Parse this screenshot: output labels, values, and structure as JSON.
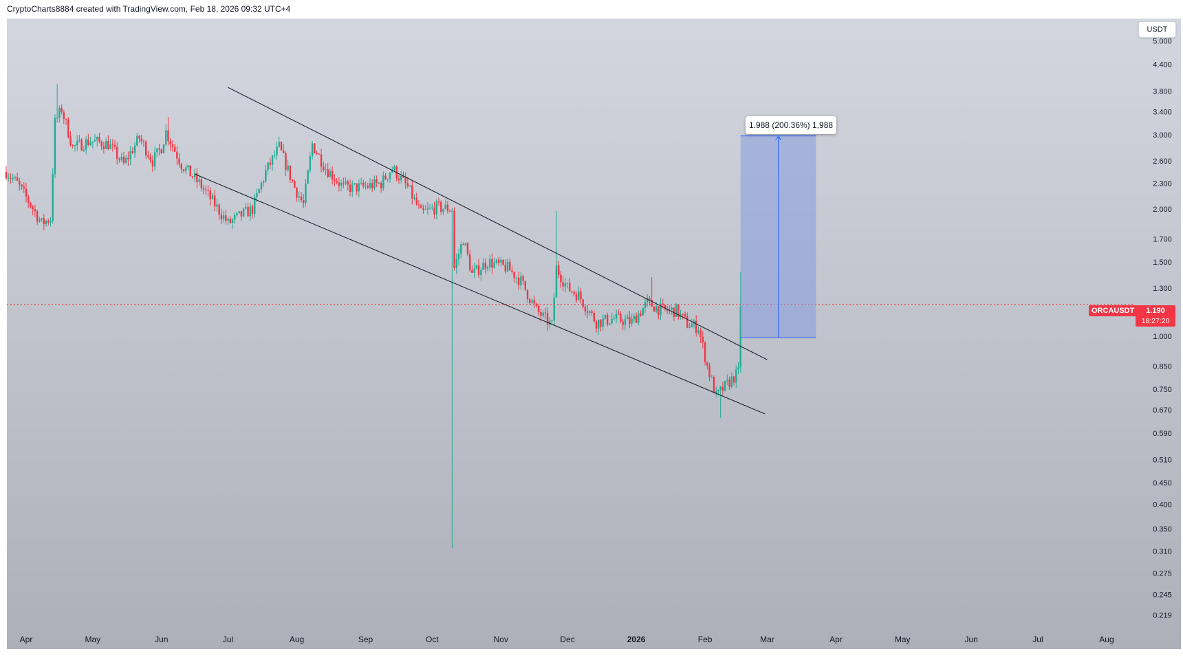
{
  "header": {
    "attribution": "CryptoCharts8884 created with TradingView.com, Feb 18, 2026 09:32 UTC+4"
  },
  "toolbar": {
    "currency": "USDT"
  },
  "symbol": {
    "ticker": "ORCAUSDT",
    "last_price": "1.190",
    "countdown": "18:27:20"
  },
  "measure": {
    "label": "1.988 (200.36%) 1,988"
  },
  "colors": {
    "up": "#22ab94",
    "down": "#f23645",
    "projection_fill": "#7f97e0",
    "projection_line": "#2962ff",
    "trendline": "#1e222d",
    "background_top": "#d3d6de",
    "background_bottom": "#adb0b8"
  },
  "chart_data": {
    "type": "candlestick",
    "scale": "log",
    "ylim": [
      0.205,
      5.2
    ],
    "y_ticks": [
      "5.000",
      "4.400",
      "3.800",
      "3.400",
      "3.000",
      "2.600",
      "2.300",
      "2.000",
      "1.700",
      "1.500",
      "1.300",
      "1.000",
      "0.850",
      "0.750",
      "0.670",
      "0.590",
      "0.510",
      "0.450",
      "0.400",
      "0.350",
      "0.310",
      "0.275",
      "0.245",
      "0.219"
    ],
    "x_ticks": [
      {
        "label": "Apr",
        "date": "2025-04-01"
      },
      {
        "label": "May",
        "date": "2025-05-01"
      },
      {
        "label": "Jun",
        "date": "2025-06-01"
      },
      {
        "label": "Jul",
        "date": "2025-07-01"
      },
      {
        "label": "Aug",
        "date": "2025-08-01"
      },
      {
        "label": "Sep",
        "date": "2025-09-01"
      },
      {
        "label": "Oct",
        "date": "2025-10-01"
      },
      {
        "label": "Nov",
        "date": "2025-11-01"
      },
      {
        "label": "Dec",
        "date": "2025-12-01"
      },
      {
        "label": "2026",
        "date": "2026-01-01"
      },
      {
        "label": "Feb",
        "date": "2026-02-01"
      },
      {
        "label": "Mar",
        "date": "2026-03-01"
      },
      {
        "label": "Apr",
        "date": "2026-04-01"
      },
      {
        "label": "May",
        "date": "2026-05-01"
      },
      {
        "label": "Jun",
        "date": "2026-06-01"
      },
      {
        "label": "Jul",
        "date": "2026-07-01"
      },
      {
        "label": "Aug",
        "date": "2026-08-01"
      }
    ],
    "price_path": [
      [
        "2025-03-23",
        2.45
      ],
      [
        "2025-03-28",
        2.3
      ],
      [
        "2025-04-03",
        2.05
      ],
      [
        "2025-04-08",
        1.85
      ],
      [
        "2025-04-12",
        1.9
      ],
      [
        "2025-04-14",
        3.2
      ],
      [
        "2025-04-17",
        3.45
      ],
      [
        "2025-04-22",
        2.8
      ],
      [
        "2025-04-30",
        2.9
      ],
      [
        "2025-05-08",
        2.85
      ],
      [
        "2025-05-15",
        2.55
      ],
      [
        "2025-05-22",
        2.95
      ],
      [
        "2025-05-28",
        2.6
      ],
      [
        "2025-06-01",
        2.8
      ],
      [
        "2025-06-03",
        3.05
      ],
      [
        "2025-06-10",
        2.55
      ],
      [
        "2025-06-18",
        2.3
      ],
      [
        "2025-06-25",
        2.05
      ],
      [
        "2025-07-01",
        1.85
      ],
      [
        "2025-07-08",
        1.95
      ],
      [
        "2025-07-12",
        2.0
      ],
      [
        "2025-07-18",
        2.45
      ],
      [
        "2025-07-24",
        2.8
      ],
      [
        "2025-07-31",
        2.25
      ],
      [
        "2025-08-04",
        2.05
      ],
      [
        "2025-08-08",
        2.85
      ],
      [
        "2025-08-14",
        2.5
      ],
      [
        "2025-08-22",
        2.25
      ],
      [
        "2025-08-30",
        2.25
      ],
      [
        "2025-09-08",
        2.3
      ],
      [
        "2025-09-13",
        2.5
      ],
      [
        "2025-09-20",
        2.25
      ],
      [
        "2025-09-26",
        1.95
      ],
      [
        "2025-10-03",
        2.02
      ],
      [
        "2025-10-10",
        2.0
      ],
      [
        "2025-10-11",
        1.45
      ],
      [
        "2025-10-15",
        1.7
      ],
      [
        "2025-10-19",
        1.4
      ],
      [
        "2025-10-26",
        1.5
      ],
      [
        "2025-11-04",
        1.45
      ],
      [
        "2025-11-10",
        1.35
      ],
      [
        "2025-11-17",
        1.15
      ],
      [
        "2025-11-24",
        1.06
      ],
      [
        "2025-11-26",
        1.45
      ],
      [
        "2025-12-01",
        1.3
      ],
      [
        "2025-12-06",
        1.25
      ],
      [
        "2025-12-14",
        1.08
      ],
      [
        "2025-12-22",
        1.1
      ],
      [
        "2025-12-30",
        1.08
      ],
      [
        "2026-01-06",
        1.2
      ],
      [
        "2026-01-13",
        1.15
      ],
      [
        "2026-01-19",
        1.15
      ],
      [
        "2026-01-24",
        1.07
      ],
      [
        "2026-01-29",
        1.05
      ],
      [
        "2026-02-02",
        0.85
      ],
      [
        "2026-02-06",
        0.72
      ],
      [
        "2026-02-10",
        0.76
      ],
      [
        "2026-02-14",
        0.8
      ],
      [
        "2026-02-16",
        0.82
      ],
      [
        "2026-02-17",
        1.19
      ]
    ],
    "wicks": [
      {
        "date": "2025-04-15",
        "high": 3.95
      },
      {
        "date": "2025-06-04",
        "high": 3.3
      },
      {
        "date": "2025-10-10",
        "low": 0.315
      },
      {
        "date": "2025-11-26",
        "high": 1.98
      },
      {
        "date": "2026-01-08",
        "high": 1.38
      },
      {
        "date": "2026-02-08",
        "low": 0.64
      },
      {
        "date": "2026-02-17",
        "high": 1.42
      }
    ],
    "last_price": 1.19,
    "trendlines": [
      {
        "from": [
          "2025-07-01",
          3.88
        ],
        "to": [
          "2026-03-01",
          0.88
        ]
      },
      {
        "from": [
          "2025-06-16",
          2.42
        ],
        "to": [
          "2026-02-28",
          0.655
        ]
      }
    ],
    "projection": {
      "from_date": "2026-02-17",
      "to_date": "2026-03-23",
      "low": 0.992,
      "high": 2.98,
      "change_pct": 200.36,
      "change_abs": 1.988
    }
  }
}
